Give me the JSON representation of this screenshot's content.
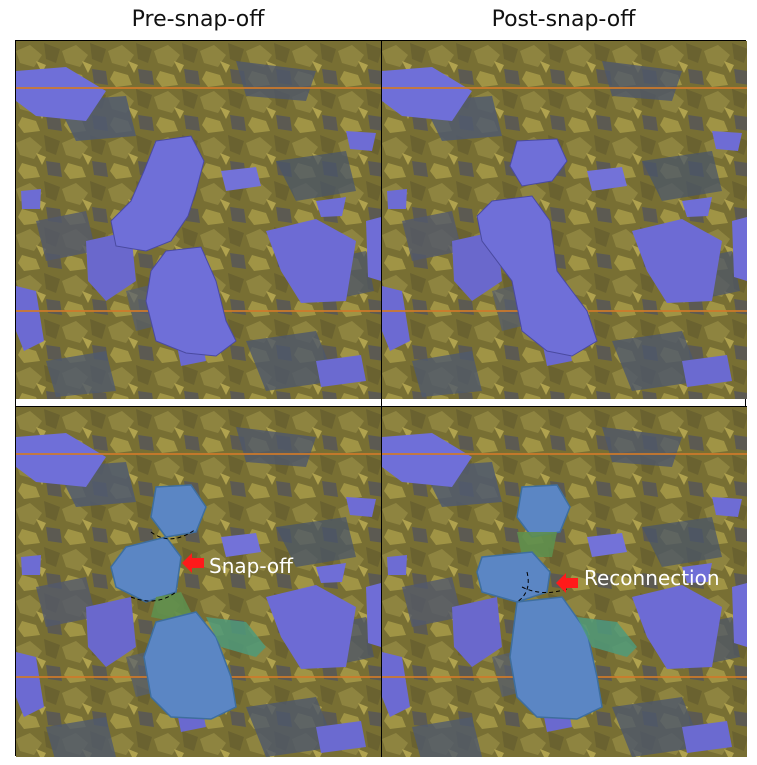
{
  "columns": {
    "left_title": "Pre-snap-off",
    "right_title": "Post-snap-off"
  },
  "annotations": {
    "snap_off": "Snap-off",
    "reconnection": "Reconnection"
  },
  "colors": {
    "rock": "#7a7134",
    "rock_light": "#9c9040",
    "pore": "#4d5a72",
    "nonwetting": "#6f6fd8",
    "blob_blue": "#5b86c4",
    "blob_green": "#5e8f4e",
    "arrow": "#ff1a1a",
    "guide_line": "#d07a2a"
  }
}
